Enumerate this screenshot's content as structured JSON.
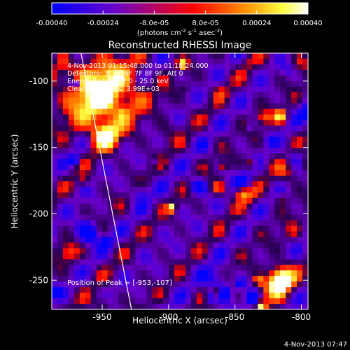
{
  "colorbar": {
    "tick_labels": [
      "-0.00040",
      "-0.00024",
      "-8.0e-05",
      "8.0e-05",
      "0.00024",
      "0.00040"
    ],
    "tick_values": [
      -0.0004,
      -0.00024,
      -8e-05,
      8e-05,
      0.00024,
      0.0004
    ],
    "range": [
      -0.0004,
      0.0004
    ],
    "units_prefix": "(photons cm",
    "units_exp1": "-2",
    "units_mid": " s",
    "units_exp2": "-1",
    "units_mid2": " asec",
    "units_exp3": "-2",
    "units_suffix": ")",
    "colors": [
      "#0000ff",
      "#6a00c8",
      "#ff0000",
      "#ff8c00",
      "#ffff40",
      "#ffffff"
    ]
  },
  "chart_data": {
    "type": "heatmap",
    "title": "Reconstructed RHESSI Image",
    "xlabel": "Heliocentric X (arcsec)",
    "ylabel": "Heliocentric Y (arcsec)",
    "xlim": [
      -988,
      -795
    ],
    "ylim": [
      -272,
      -79
    ],
    "x_ticks": [
      -950,
      -900,
      -850,
      -800
    ],
    "x_tick_labels": [
      "-950",
      "-900",
      "-850",
      "-800"
    ],
    "y_ticks": [
      -100,
      -150,
      -200,
      -250
    ],
    "y_tick_labels": [
      "-100",
      "-150",
      "-200",
      "-250"
    ],
    "info_lines": [
      "4-Nov-2013 01:15:48.000 to 01:18:24.000",
      "Detectors: 3F 5F 6F 7F 8F 9F, Att 0",
      "Energy Range: 12.0 - 25.0 keV",
      "Clean: Iterations: 3.99E+03"
    ],
    "peak_label": "Position of Peak = [-953,-107]",
    "peak": [
      -953,
      -107
    ],
    "limb_line": [
      [
        -966,
        -79
      ],
      [
        -928,
        -272
      ]
    ]
  },
  "timestamp": "4-Nov-2013 07:47"
}
